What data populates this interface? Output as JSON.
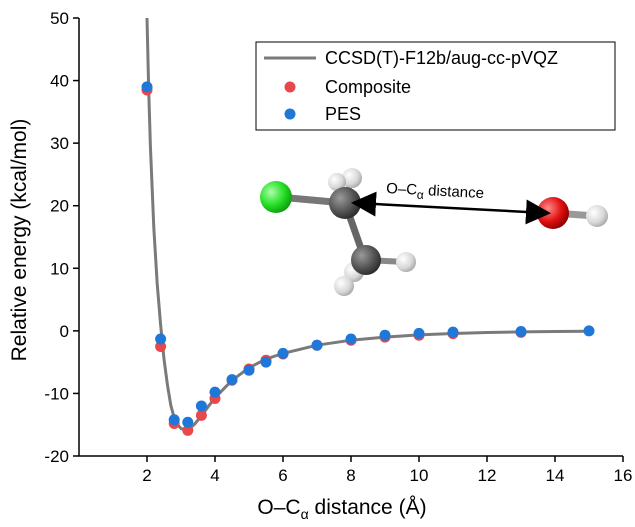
{
  "chart_data": {
    "type": "scatter",
    "xlabel": "O–C",
    "xlabel_subscript": "α",
    "xlabel_suffix": " distance (Å)",
    "ylabel": "Relative energy (kcal/mol)",
    "xlim": [
      0,
      16
    ],
    "ylim": [
      -20,
      50
    ],
    "xticks": [
      2,
      4,
      6,
      8,
      10,
      12,
      14,
      16
    ],
    "yticks": [
      -20,
      -10,
      0,
      10,
      20,
      30,
      40,
      50
    ],
    "grid": false,
    "legend_position": "top-right",
    "series": [
      {
        "name": "CCSD(T)-F12b/aug-cc-pVQZ",
        "kind": "line",
        "color": "#7a7a7a",
        "x": [
          2.0,
          2.05,
          2.1,
          2.2,
          2.3,
          2.4,
          2.5,
          2.6,
          2.7,
          2.8,
          2.9,
          3.0,
          3.1,
          3.2,
          3.3,
          3.4,
          3.6,
          3.8,
          4.0,
          4.5,
          5.0,
          5.5,
          6.0,
          7.0,
          8.0,
          9.0,
          10.0,
          11.0,
          12.0,
          13.0,
          14.0,
          15.0
        ],
        "y": [
          50,
          38.5,
          29.5,
          16.5,
          7.5,
          1.0,
          -4.5,
          -8.6,
          -11.9,
          -13.9,
          -15.0,
          -15.6,
          -15.8,
          -15.7,
          -15.4,
          -14.9,
          -13.6,
          -12.1,
          -10.7,
          -7.9,
          -5.9,
          -4.5,
          -3.6,
          -2.3,
          -1.5,
          -1.0,
          -0.65,
          -0.42,
          -0.27,
          -0.17,
          -0.1,
          -0.05
        ]
      },
      {
        "name": "Composite",
        "kind": "points",
        "color": "#e8474b",
        "x": [
          2.0,
          2.4,
          2.8,
          3.2,
          3.6,
          4.0,
          4.5,
          5.0,
          5.5,
          6.0,
          7.0,
          8.0,
          9.0,
          10.0,
          11.0,
          13.0
        ],
        "y": [
          38.5,
          -2.5,
          -14.8,
          -15.9,
          -13.5,
          -10.8,
          -7.9,
          -6.1,
          -4.7,
          -3.7,
          -2.3,
          -1.5,
          -1.0,
          -0.7,
          -0.45,
          -0.25
        ]
      },
      {
        "name": "PES",
        "kind": "points",
        "color": "#1f77d8",
        "x": [
          2.0,
          2.4,
          2.8,
          3.2,
          3.6,
          4.0,
          4.5,
          5.0,
          5.5,
          6.0,
          7.0,
          8.0,
          9.0,
          10.0,
          11.0,
          13.0,
          15.0
        ],
        "y": [
          39.0,
          -1.3,
          -14.2,
          -14.6,
          -12.0,
          -9.8,
          -7.8,
          -6.3,
          -5.0,
          -3.6,
          -2.3,
          -1.3,
          -0.7,
          -0.4,
          -0.2,
          -0.1,
          0.0
        ]
      }
    ],
    "annotation": {
      "text": "O–C",
      "subscript": "α",
      "suffix": " distance"
    }
  },
  "colors": {
    "chlorine": "#22dd22",
    "carbon": "#555555",
    "hydrogen": "#dddddd",
    "oxygen": "#e01010"
  }
}
